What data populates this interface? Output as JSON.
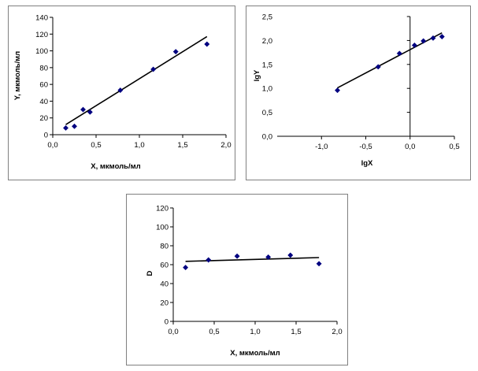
{
  "chart_data": [
    {
      "type": "scatter",
      "xlabel": "X, мкмоль/мл",
      "ylabel": "Y, мкмоль/мл",
      "xlim": [
        0,
        2
      ],
      "ylim": [
        0,
        140
      ],
      "xticks": [
        0,
        0.5,
        1.0,
        1.5,
        2.0
      ],
      "xtick_labels": [
        "0,0",
        "0,5",
        "1,0",
        "1,5",
        "2,0"
      ],
      "yticks": [
        0,
        20,
        40,
        60,
        80,
        100,
        120,
        140
      ],
      "ytick_labels": [
        "0",
        "20",
        "40",
        "60",
        "80",
        "100",
        "120",
        "140"
      ],
      "grid": false,
      "legend": "none",
      "marker_color": "#000080",
      "line_color": "#000000",
      "points": {
        "x": [
          0.15,
          0.25,
          0.35,
          0.43,
          0.78,
          1.16,
          1.42,
          1.78
        ],
        "y": [
          8,
          10,
          30,
          27,
          53,
          78,
          99,
          108
        ]
      },
      "trendline": {
        "x": [
          0.15,
          1.78
        ],
        "y": [
          12,
          117
        ]
      }
    },
    {
      "type": "scatter",
      "xlabel": "lgX",
      "ylabel": "lgY",
      "xlim": [
        -1.5,
        0.5
      ],
      "ylim": [
        0,
        2.5
      ],
      "xticks": [
        -1.0,
        -0.5,
        0.0,
        0.5
      ],
      "xtick_labels": [
        "-1,0",
        "-0,5",
        "0,0",
        "0,5"
      ],
      "yticks": [
        0,
        0.5,
        1.0,
        1.5,
        2.0,
        2.5
      ],
      "ytick_labels": [
        "0,0",
        "0,5",
        "1,0",
        "1,5",
        "2,0",
        "2,5"
      ],
      "x_axis_at_y": 0,
      "y_axis_at_x": 0,
      "grid": false,
      "legend": "none",
      "marker_color": "#000080",
      "line_color": "#000000",
      "points": {
        "x": [
          -0.82,
          -0.36,
          -0.12,
          0.05,
          0.15,
          0.26,
          0.36
        ],
        "y": [
          0.96,
          1.45,
          1.73,
          1.9,
          1.99,
          2.05,
          2.08
        ]
      },
      "trendline": {
        "x": [
          -0.82,
          0.36
        ],
        "y": [
          1.01,
          2.16
        ]
      }
    },
    {
      "type": "scatter",
      "xlabel": "X, мкмоль/мл",
      "ylabel": "D",
      "xlim": [
        0,
        2
      ],
      "ylim": [
        0,
        120
      ],
      "xticks": [
        0,
        0.5,
        1.0,
        1.5,
        2.0
      ],
      "xtick_labels": [
        "0,0",
        "0,5",
        "1,0",
        "1,5",
        "2,0"
      ],
      "yticks": [
        0,
        20,
        40,
        60,
        80,
        100,
        120
      ],
      "ytick_labels": [
        "0",
        "20",
        "40",
        "60",
        "80",
        "100",
        "120"
      ],
      "grid": false,
      "legend": "none",
      "marker_color": "#000080",
      "line_color": "#000000",
      "points": {
        "x": [
          0.15,
          0.43,
          0.78,
          1.16,
          1.43,
          1.78
        ],
        "y": [
          57,
          65,
          69,
          68,
          70,
          61
        ]
      },
      "trendline": {
        "x": [
          0.15,
          1.78
        ],
        "y": [
          63.5,
          67.5
        ]
      }
    }
  ]
}
